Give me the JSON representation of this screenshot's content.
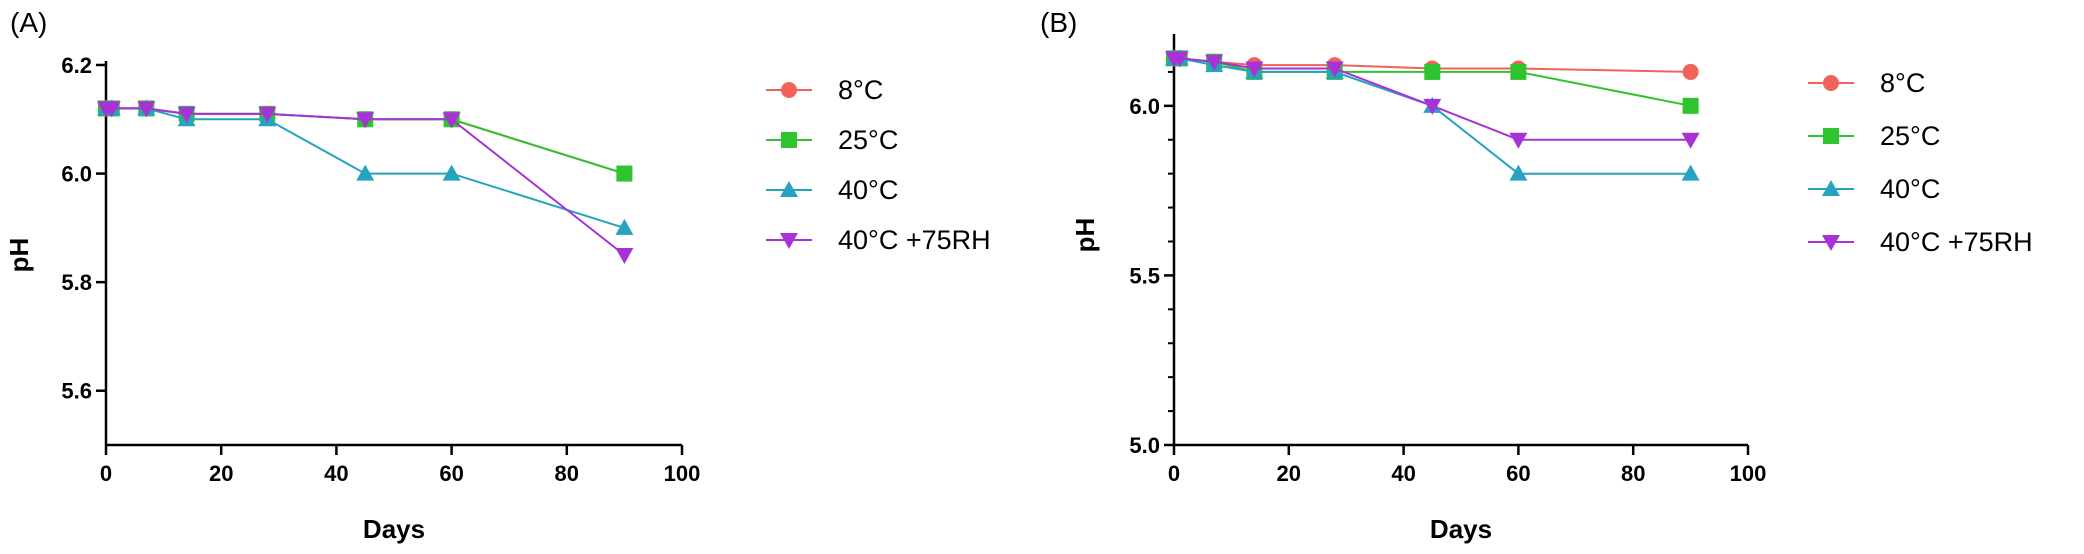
{
  "chart_data": [
    {
      "panel": "(A)",
      "type": "line",
      "xlabel": "Days",
      "ylabel": "pH",
      "xlim": [
        0,
        100
      ],
      "ylim": [
        5.5,
        6.2
      ],
      "xticks": [
        0,
        20,
        40,
        60,
        80,
        100
      ],
      "yticks": [
        5.6,
        5.8,
        6.0,
        6.2
      ],
      "ytick_labels": [
        "5.6",
        "5.8",
        "6.0",
        "6.2"
      ],
      "legend_position": "right",
      "series": [
        {
          "name": "8°C",
          "color": "#f0625a",
          "marker": "circle",
          "x": [
            0,
            1,
            7,
            14,
            28,
            45,
            60,
            90
          ],
          "y": [
            6.12,
            6.12,
            6.12,
            6.11,
            6.11,
            6.1,
            6.1,
            6.0
          ]
        },
        {
          "name": "25°C",
          "color": "#2fc32f",
          "marker": "square",
          "x": [
            0,
            1,
            7,
            14,
            28,
            45,
            60,
            90
          ],
          "y": [
            6.12,
            6.12,
            6.12,
            6.11,
            6.11,
            6.1,
            6.1,
            6.0
          ]
        },
        {
          "name": "40°C",
          "color": "#25a3bf",
          "marker": "triangle-up",
          "x": [
            0,
            1,
            7,
            14,
            28,
            45,
            60,
            90
          ],
          "y": [
            6.12,
            6.12,
            6.12,
            6.1,
            6.1,
            6.0,
            6.0,
            5.9
          ]
        },
        {
          "name": "40°C +75RH",
          "color": "#a832d6",
          "marker": "triangle-down",
          "x": [
            0,
            1,
            7,
            14,
            28,
            45,
            60,
            90
          ],
          "y": [
            6.12,
            6.12,
            6.12,
            6.11,
            6.11,
            6.1,
            6.1,
            5.85
          ]
        }
      ]
    },
    {
      "panel": "(B)",
      "type": "line",
      "xlabel": "Days",
      "ylabel": "pH",
      "xlim": [
        0,
        100
      ],
      "ylim": [
        5.0,
        6.2
      ],
      "xticks": [
        0,
        20,
        40,
        60,
        80,
        100
      ],
      "yticks": [
        5.0,
        5.5,
        6.0
      ],
      "ytick_labels": [
        "5.0",
        "5.5",
        "6.0"
      ],
      "minor_yticks": [
        5.1,
        5.2,
        5.3,
        5.4,
        5.6,
        5.7,
        5.8,
        5.9,
        6.1
      ],
      "legend_position": "right",
      "series": [
        {
          "name": "8°C",
          "color": "#f0625a",
          "marker": "circle",
          "x": [
            0,
            1,
            7,
            14,
            28,
            45,
            60,
            90
          ],
          "y": [
            6.14,
            6.14,
            6.13,
            6.12,
            6.12,
            6.11,
            6.11,
            6.1
          ]
        },
        {
          "name": "25°C",
          "color": "#2fc32f",
          "marker": "square",
          "x": [
            0,
            1,
            7,
            14,
            28,
            45,
            60,
            90
          ],
          "y": [
            6.14,
            6.14,
            6.13,
            6.1,
            6.1,
            6.1,
            6.1,
            6.0
          ]
        },
        {
          "name": "40°C",
          "color": "#25a3bf",
          "marker": "triangle-up",
          "x": [
            0,
            1,
            7,
            14,
            28,
            45,
            60,
            90
          ],
          "y": [
            6.14,
            6.14,
            6.12,
            6.1,
            6.1,
            6.0,
            5.8,
            5.8
          ]
        },
        {
          "name": "40°C +75RH",
          "color": "#a832d6",
          "marker": "triangle-down",
          "x": [
            0,
            1,
            7,
            14,
            28,
            45,
            60,
            90
          ],
          "y": [
            6.14,
            6.14,
            6.13,
            6.11,
            6.11,
            6.0,
            5.9,
            5.9
          ]
        }
      ]
    }
  ]
}
